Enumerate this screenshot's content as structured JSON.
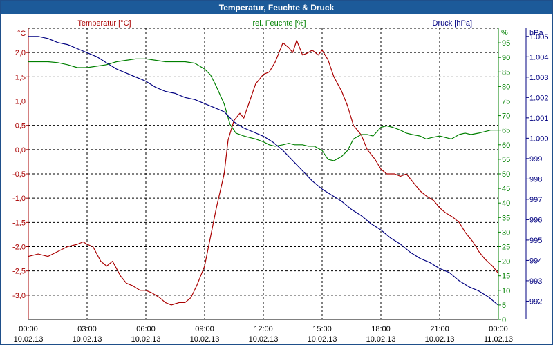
{
  "chart_data": {
    "type": "line",
    "title": "Temperatur, Feuchte & Druck",
    "legend": [
      {
        "label": "Temperatur [°C]",
        "color": "#aa0000"
      },
      {
        "label": "rel. Feuchte [%]",
        "color": "#008000"
      },
      {
        "label": "Druck [hPa]",
        "color": "#000080"
      }
    ],
    "axes": {
      "left": {
        "unit": "°C",
        "min": -3.5,
        "max": 2.5,
        "ticks": [
          "2,0",
          "1,5",
          "1,0",
          "0,5",
          "0,0",
          "-0,5",
          "-1,0",
          "-1,5",
          "-2,0",
          "-2,5",
          "-3,0"
        ],
        "tick_values": [
          2.0,
          1.5,
          1.0,
          0.5,
          0.0,
          -0.5,
          -1.0,
          -1.5,
          -2.0,
          -2.5,
          -3.0
        ],
        "color": "#aa0000"
      },
      "right1": {
        "unit": "%",
        "min": 0,
        "max": 100,
        "ticks": [
          "95",
          "90",
          "85",
          "80",
          "75",
          "70",
          "65",
          "60",
          "55",
          "50",
          "45",
          "40",
          "35",
          "30",
          "25",
          "20",
          "15",
          "10",
          "5",
          "0"
        ],
        "tick_values": [
          95,
          90,
          85,
          80,
          75,
          70,
          65,
          60,
          55,
          50,
          45,
          40,
          35,
          30,
          25,
          20,
          15,
          10,
          5,
          0
        ],
        "color": "#008000"
      },
      "right2": {
        "unit": "hPa",
        "min": 991.1,
        "max": 1005.4,
        "ticks": [
          "1.005",
          "1.004",
          "1.003",
          "1.002",
          "1.001",
          "1.000",
          "999",
          "998",
          "997",
          "996",
          "995",
          "994",
          "993",
          "992"
        ],
        "tick_values": [
          1005,
          1004,
          1003,
          1002,
          1001,
          1000,
          999,
          998,
          997,
          996,
          995,
          994,
          993,
          992
        ],
        "color": "#000080"
      }
    },
    "x_ticks": [
      {
        "time": "00:00",
        "date": "10.02.13"
      },
      {
        "time": "03:00",
        "date": "10.02.13"
      },
      {
        "time": "06:00",
        "date": "10.02.13"
      },
      {
        "time": "09:00",
        "date": "10.02.13"
      },
      {
        "time": "12:00",
        "date": "10.02.13"
      },
      {
        "time": "15:00",
        "date": "10.02.13"
      },
      {
        "time": "18:00",
        "date": "10.02.13"
      },
      {
        "time": "21:00",
        "date": "10.02.13"
      },
      {
        "time": "00:00",
        "date": "11.02.13"
      }
    ],
    "x_hours_range": [
      0,
      24
    ],
    "grid": true,
    "series": [
      {
        "name": "Temperatur [°C]",
        "axis": "left",
        "color": "#aa0000",
        "x": [
          0,
          0.5,
          1,
          1.5,
          2,
          2.5,
          2.8,
          3,
          3.3,
          3.7,
          4,
          4.3,
          4.7,
          5,
          5.3,
          5.7,
          6,
          6.3,
          6.7,
          7,
          7.3,
          7.7,
          8,
          8.3,
          8.6,
          9,
          9.3,
          9.6,
          10,
          10.2,
          10.5,
          10.8,
          11,
          11.3,
          11.6,
          12,
          12.3,
          12.6,
          13,
          13.3,
          13.5,
          13.7,
          14,
          14.2,
          14.5,
          14.8,
          15,
          15.3,
          15.6,
          16,
          16.3,
          16.6,
          17,
          17.3,
          17.7,
          18,
          18.3,
          18.7,
          19,
          19.3,
          19.7,
          20,
          20.3,
          20.7,
          21,
          21.3,
          21.7,
          22,
          22.3,
          22.7,
          23,
          23.3,
          23.7,
          24
        ],
        "y": [
          -2.2,
          -2.15,
          -2.2,
          -2.1,
          -2.0,
          -1.95,
          -1.9,
          -1.95,
          -2.0,
          -2.3,
          -2.4,
          -2.3,
          -2.6,
          -2.75,
          -2.8,
          -2.9,
          -2.9,
          -2.95,
          -3.05,
          -3.15,
          -3.2,
          -3.15,
          -3.15,
          -3.05,
          -2.8,
          -2.4,
          -1.8,
          -1.2,
          -0.5,
          0.2,
          0.6,
          0.75,
          0.65,
          1.0,
          1.35,
          1.55,
          1.6,
          1.8,
          2.2,
          2.1,
          2.0,
          2.25,
          1.95,
          1.98,
          2.05,
          1.95,
          2.05,
          1.85,
          1.5,
          1.2,
          0.9,
          0.5,
          0.3,
          0.0,
          -0.2,
          -0.4,
          -0.5,
          -0.5,
          -0.55,
          -0.5,
          -0.7,
          -0.85,
          -0.95,
          -1.05,
          -1.2,
          -1.3,
          -1.4,
          -1.5,
          -1.7,
          -1.9,
          -2.1,
          -2.25,
          -2.4,
          -2.55
        ]
      },
      {
        "name": "rel. Feuchte [%]",
        "axis": "right1",
        "color": "#008000",
        "x": [
          0,
          0.5,
          1,
          1.5,
          2,
          2.5,
          3,
          3.5,
          4,
          4.5,
          5,
          5.5,
          6,
          6.5,
          7,
          7.5,
          8,
          8.5,
          9,
          9.3,
          9.6,
          10,
          10.3,
          10.6,
          11,
          11.3,
          11.6,
          12,
          12.3,
          12.6,
          13,
          13.3,
          13.6,
          14,
          14.3,
          14.6,
          15,
          15.3,
          15.6,
          16,
          16.3,
          16.6,
          17,
          17.3,
          17.6,
          18,
          18.3,
          18.6,
          19,
          19.3,
          19.6,
          20,
          20.3,
          20.6,
          21,
          21.3,
          21.6,
          22,
          22.3,
          22.6,
          23,
          23.3,
          23.6,
          24
        ],
        "y": [
          88.5,
          88.5,
          88.5,
          88.2,
          87.5,
          86.5,
          86.5,
          87.0,
          87.5,
          88.5,
          89.0,
          89.5,
          89.5,
          89.0,
          88.5,
          88.5,
          88.5,
          88.0,
          86.0,
          84.0,
          80.0,
          74.0,
          67.0,
          64.0,
          63.0,
          62.5,
          62.0,
          61.0,
          60.0,
          59.5,
          60.0,
          60.5,
          60.0,
          60.0,
          59.5,
          59.5,
          58.0,
          55.0,
          54.5,
          56.0,
          58.0,
          62.0,
          63.5,
          63.5,
          63.0,
          66.0,
          66.5,
          66.0,
          65.0,
          64.0,
          63.5,
          63.0,
          62.0,
          62.5,
          63.0,
          62.5,
          62.0,
          63.5,
          64.0,
          63.5,
          64.0,
          64.5,
          65.0,
          65.0
        ]
      },
      {
        "name": "Druck [hPa]",
        "axis": "right2",
        "color": "#000080",
        "x": [
          0,
          0.5,
          1,
          1.5,
          2,
          2.5,
          3,
          3.5,
          4,
          4.5,
          5,
          5.5,
          6,
          6.5,
          7,
          7.5,
          8,
          8.5,
          9,
          9.5,
          10,
          10.5,
          11,
          11.5,
          12,
          12.5,
          13,
          13.5,
          14,
          14.5,
          15,
          15.5,
          16,
          16.5,
          17,
          17.5,
          18,
          18.5,
          19,
          19.5,
          20,
          20.5,
          21,
          21.5,
          22,
          22.5,
          23,
          23.5,
          24
        ],
        "y": [
          1005.0,
          1005.0,
          1004.9,
          1004.7,
          1004.6,
          1004.4,
          1004.2,
          1004.0,
          1003.7,
          1003.4,
          1003.2,
          1003.0,
          1002.8,
          1002.5,
          1002.3,
          1002.2,
          1002.0,
          1001.9,
          1001.7,
          1001.5,
          1001.3,
          1000.8,
          1000.5,
          1000.3,
          1000.1,
          999.8,
          999.4,
          998.9,
          998.4,
          997.9,
          997.5,
          997.2,
          996.9,
          996.5,
          996.2,
          995.8,
          995.5,
          995.1,
          994.8,
          994.4,
          994.1,
          993.9,
          993.6,
          993.4,
          993.0,
          992.7,
          992.5,
          992.2,
          991.8
        ]
      }
    ]
  }
}
